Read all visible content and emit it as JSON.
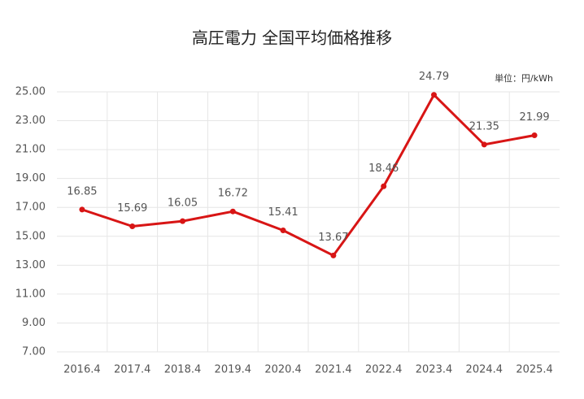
{
  "chart_data": {
    "type": "line",
    "title": "高圧電力 全国平均価格推移",
    "unit_label": "単位：円/kWh",
    "categories": [
      "2016.4",
      "2017.4",
      "2018.4",
      "2019.4",
      "2020.4",
      "2021.4",
      "2022.4",
      "2023.4",
      "2024.4",
      "2025.4"
    ],
    "series": [
      {
        "name": "高圧電力",
        "color": "#d81515",
        "values": [
          16.85,
          15.69,
          16.05,
          16.72,
          15.41,
          13.67,
          18.46,
          24.79,
          21.35,
          21.99
        ]
      }
    ],
    "ylim": [
      7,
      25
    ],
    "yticks": [
      {
        "value": 7,
        "label": "7.00"
      },
      {
        "value": 9,
        "label": "9.00"
      },
      {
        "value": 11,
        "label": "11.00"
      },
      {
        "value": 13,
        "label": "13.00"
      },
      {
        "value": 15,
        "label": "15.00"
      },
      {
        "value": 17,
        "label": "17.00"
      },
      {
        "value": 19,
        "label": "19.00"
      },
      {
        "value": 21,
        "label": "21.00"
      },
      {
        "value": 23,
        "label": "23.00"
      },
      {
        "value": 25,
        "label": "25.00"
      }
    ],
    "grid": true
  }
}
